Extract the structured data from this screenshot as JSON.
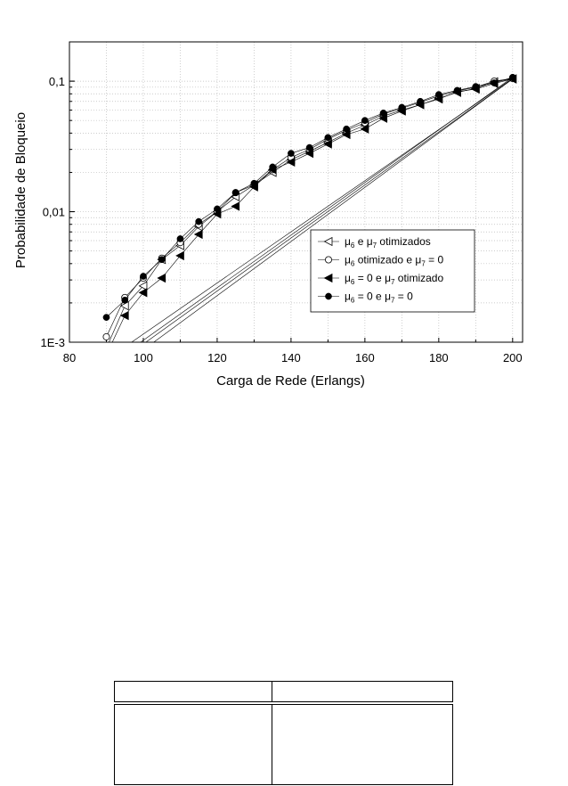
{
  "chart_data": {
    "type": "line",
    "title": "",
    "xlabel": "Carga de Rede (Erlangs)",
    "ylabel": "Probabilidade de Bloqueio",
    "xlim": [
      80,
      202.7
    ],
    "ylim": [
      0.001,
      0.2
    ],
    "yscale": "log",
    "grid": true,
    "legend_position": "center-right",
    "x_ticks": [
      80,
      100,
      120,
      140,
      160,
      180,
      200
    ],
    "x_tick_labels": [
      "80",
      "100",
      "120",
      "140",
      "160",
      "180",
      "200"
    ],
    "y_ticks": [
      0.001,
      0.01,
      0.1
    ],
    "y_tick_labels": [
      "1E-3",
      "0,01",
      "0,1"
    ],
    "x": [
      90,
      95,
      100,
      105,
      110,
      115,
      120,
      125,
      130,
      135,
      140,
      145,
      150,
      155,
      160,
      165,
      170,
      175,
      180,
      185,
      190,
      195,
      200
    ],
    "series": [
      {
        "name": "μ6 e μ7 otimizados",
        "legend_parts": [
          "μ",
          "6",
          " e ",
          "μ",
          "7",
          " otimizados"
        ],
        "marker": "open-left-triangle",
        "values": [
          0.0009,
          0.0019,
          0.0027,
          0.0043,
          0.0055,
          0.0077,
          0.01,
          0.013,
          0.016,
          0.02,
          0.025,
          0.029,
          0.034,
          0.04,
          0.046,
          0.054,
          0.06,
          0.066,
          0.074,
          0.082,
          0.088,
          0.099,
          0.104
        ]
      },
      {
        "name": "μ6 otimizado e μ7 = 0",
        "legend_parts": [
          "μ",
          "6",
          " otimizado e ",
          "μ",
          "7",
          " = 0"
        ],
        "marker": "open-circle",
        "values": [
          0.0011,
          0.0022,
          0.0031,
          0.0044,
          0.0058,
          0.008,
          0.01,
          0.014,
          0.016,
          0.021,
          0.026,
          0.03,
          0.036,
          0.042,
          0.048,
          0.056,
          0.062,
          0.069,
          0.077,
          0.084,
          0.09,
          0.1,
          0.105
        ]
      },
      {
        "name": "μ6 = 0 e μ7 otimizado",
        "legend_parts": [
          "μ",
          "6",
          " = 0 e ",
          "μ",
          "7",
          " otimizado"
        ],
        "marker": "filled-left-triangle",
        "values": [
          0.0008,
          0.0016,
          0.0024,
          0.0031,
          0.0046,
          0.0067,
          0.0096,
          0.011,
          0.0155,
          0.021,
          0.024,
          0.028,
          0.033,
          0.039,
          0.043,
          0.052,
          0.059,
          0.066,
          0.073,
          0.083,
          0.087,
          0.096,
          0.104
        ]
      },
      {
        "name": "μ6 = 0 e μ7 = 0",
        "legend_parts": [
          "μ",
          "6",
          " = 0 e ",
          "μ",
          "7",
          " = 0"
        ],
        "marker": "filled-circle",
        "values": [
          0.00155,
          0.0021,
          0.0032,
          0.0043,
          0.0062,
          0.0084,
          0.0105,
          0.014,
          0.0165,
          0.022,
          0.028,
          0.031,
          0.037,
          0.043,
          0.05,
          0.057,
          0.063,
          0.07,
          0.079,
          0.085,
          0.091,
          0.097,
          0.107
        ]
      }
    ]
  }
}
